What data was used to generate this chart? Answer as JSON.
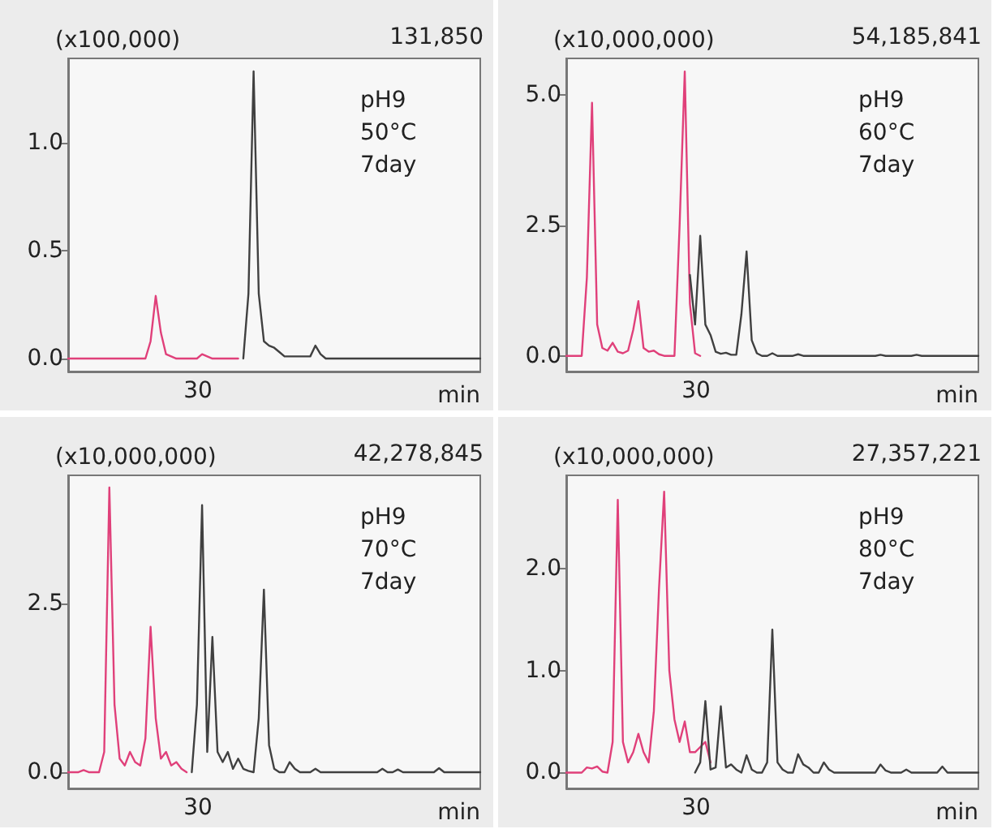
{
  "chart_data": [
    {
      "type": "line",
      "ylabel": "(x100,000)",
      "xlabel": "min",
      "annotations": [
        "131,850",
        "pH9\n50°C\n7day",
        "30"
      ],
      "categories": [
        null,
        null,
        null,
        null,
        null,
        null,
        null,
        null,
        null,
        null,
        null,
        null,
        null,
        null,
        null,
        null,
        null,
        null,
        null,
        null,
        null,
        null,
        null,
        null,
        null,
        null,
        null,
        null,
        null,
        null,
        null,
        null,
        null,
        null,
        null,
        null,
        null,
        null,
        null,
        null,
        null,
        null,
        null,
        null,
        null,
        null,
        null,
        null,
        null,
        null,
        null,
        null,
        null,
        null,
        null,
        null,
        null,
        null,
        null,
        null,
        null,
        null,
        null,
        null,
        null,
        null,
        null,
        null,
        null,
        null,
        null,
        null,
        null,
        null,
        null,
        null,
        null,
        null,
        null,
        null,
        null
      ],
      "ylim": [
        -0.06,
        1.39
      ],
      "yticks": [
        {
          "value": 0,
          "label": "0.0"
        },
        {
          "value": 0.5,
          "label": "0.5"
        },
        {
          "value": 1,
          "label": "1.0"
        }
      ],
      "grid": false,
      "marker": "none",
      "series": [
        {
          "color": "#e0407a",
          "values": [
            0,
            0,
            0,
            0,
            0,
            0,
            0,
            0,
            0,
            0,
            0,
            0,
            0,
            0,
            0,
            0,
            0.08,
            0.29,
            0.12,
            0.02,
            0.01,
            0,
            0,
            0,
            0,
            0,
            0.02,
            0.01,
            0,
            0,
            0,
            0,
            0,
            0,
            null,
            null,
            null,
            null,
            null,
            null,
            null,
            null,
            null,
            null,
            null,
            null,
            null,
            null,
            null,
            null,
            null,
            null,
            null,
            null,
            null,
            null,
            null,
            null,
            null,
            null,
            null,
            null,
            null,
            null,
            null,
            null,
            null,
            null,
            null,
            null,
            null,
            null,
            null,
            null,
            null,
            null,
            null,
            null,
            null,
            null,
            null
          ]
        },
        {
          "color": "#404040",
          "values": [
            null,
            null,
            null,
            null,
            null,
            null,
            null,
            null,
            null,
            null,
            null,
            null,
            null,
            null,
            null,
            null,
            null,
            null,
            null,
            null,
            null,
            null,
            null,
            null,
            null,
            null,
            null,
            null,
            null,
            null,
            null,
            null,
            null,
            null,
            0,
            0.3,
            1.33,
            0.3,
            0.08,
            0.06,
            0.05,
            0.03,
            0.01,
            0.01,
            0.01,
            0.01,
            0.01,
            0.01,
            0.06,
            0.02,
            0,
            0,
            0,
            0,
            0,
            0,
            0,
            0,
            0,
            0,
            0,
            0,
            0,
            0,
            0,
            0,
            0,
            0,
            0,
            0,
            0,
            0,
            0,
            0,
            0,
            0,
            0,
            0,
            0,
            0,
            0
          ]
        }
      ]
    },
    {
      "type": "line",
      "ylabel": "(x10,000,000)",
      "xlabel": "min",
      "annotations": [
        "54,185,841",
        "pH9\n60°C\n7day",
        "30"
      ],
      "categories": [
        null,
        null,
        null,
        null,
        null,
        null,
        null,
        null,
        null,
        null,
        null,
        null,
        null,
        null,
        null,
        null,
        null,
        null,
        null,
        null,
        null,
        null,
        null,
        null,
        null,
        null,
        null,
        null,
        null,
        null,
        null,
        null,
        null,
        null,
        null,
        null,
        null,
        null,
        null,
        null,
        null,
        null,
        null,
        null,
        null,
        null,
        null,
        null,
        null,
        null,
        null,
        null,
        null,
        null,
        null,
        null,
        null,
        null,
        null,
        null,
        null,
        null,
        null,
        null,
        null,
        null,
        null,
        null,
        null,
        null,
        null,
        null,
        null,
        null,
        null,
        null,
        null,
        null,
        null,
        null,
        null
      ],
      "ylim": [
        -0.3,
        5.7
      ],
      "yticks": [
        {
          "value": 0,
          "label": "0.0"
        },
        {
          "value": 2.5,
          "label": "2.5"
        },
        {
          "value": 5,
          "label": "5.0"
        }
      ],
      "grid": false,
      "marker": "none",
      "series": [
        {
          "color": "#e0407a",
          "values": [
            0,
            0,
            0,
            0,
            1.5,
            4.85,
            0.6,
            0.15,
            0.1,
            0.25,
            0.08,
            0.05,
            0.1,
            0.5,
            1.05,
            0.15,
            0.08,
            0.1,
            0.03,
            0,
            0,
            0,
            2.5,
            5.45,
            1,
            0.05,
            0,
            null,
            null,
            null,
            null,
            null,
            null,
            null,
            null,
            null,
            null,
            null,
            null,
            null,
            null,
            null,
            null,
            null,
            null,
            null,
            null,
            null,
            null,
            null,
            null,
            null,
            null,
            null,
            null,
            null,
            null,
            null,
            null,
            null,
            null,
            null,
            null,
            null,
            null,
            null,
            null,
            null,
            null,
            null,
            null,
            null,
            null,
            null,
            null,
            null,
            null,
            null,
            null,
            null,
            null
          ]
        },
        {
          "color": "#404040",
          "values": [
            null,
            null,
            null,
            null,
            null,
            null,
            null,
            null,
            null,
            null,
            null,
            null,
            null,
            null,
            null,
            null,
            null,
            null,
            null,
            null,
            null,
            null,
            null,
            null,
            1.55,
            0.6,
            2.3,
            0.6,
            0.4,
            0.08,
            0.04,
            0.06,
            0.02,
            0.02,
            0.8,
            2,
            0.3,
            0.05,
            0,
            0,
            0.05,
            0,
            0,
            0,
            0,
            0.03,
            0,
            0,
            0,
            0,
            0,
            0,
            0,
            0,
            0,
            0,
            0,
            0,
            0,
            0,
            0,
            0.02,
            0,
            0,
            0,
            0,
            0,
            0,
            0.02,
            0,
            0,
            0,
            0,
            0,
            0,
            0,
            0,
            0,
            0,
            0,
            0
          ]
        }
      ]
    },
    {
      "type": "line",
      "ylabel": "(x10,000,000)",
      "xlabel": "min",
      "annotations": [
        "42,278,845",
        "pH9\n70°C\n7day",
        "30"
      ],
      "categories": [
        null,
        null,
        null,
        null,
        null,
        null,
        null,
        null,
        null,
        null,
        null,
        null,
        null,
        null,
        null,
        null,
        null,
        null,
        null,
        null,
        null,
        null,
        null,
        null,
        null,
        null,
        null,
        null,
        null,
        null,
        null,
        null,
        null,
        null,
        null,
        null,
        null,
        null,
        null,
        null,
        null,
        null,
        null,
        null,
        null,
        null,
        null,
        null,
        null,
        null,
        null,
        null,
        null,
        null,
        null,
        null,
        null,
        null,
        null,
        null,
        null,
        null,
        null,
        null,
        null,
        null,
        null,
        null,
        null,
        null,
        null,
        null,
        null,
        null,
        null,
        null,
        null,
        null,
        null,
        null,
        null
      ],
      "ylim": [
        -0.24,
        4.39
      ],
      "yticks": [
        {
          "value": 0,
          "label": "0.0"
        },
        {
          "value": 2.5,
          "label": "2.5"
        }
      ],
      "grid": false,
      "marker": "none",
      "series": [
        {
          "color": "#e0407a",
          "values": [
            0,
            0,
            0,
            0.03,
            0,
            0,
            0,
            0.3,
            4.21,
            1,
            0.2,
            0.1,
            0.3,
            0.15,
            0.1,
            0.5,
            2.15,
            0.8,
            0.2,
            0.3,
            0.1,
            0.15,
            0.05,
            0,
            null,
            null,
            null,
            null,
            null,
            null,
            null,
            null,
            null,
            null,
            null,
            null,
            null,
            null,
            null,
            null,
            null,
            null,
            null,
            null,
            null,
            null,
            null,
            null,
            null,
            null,
            null,
            null,
            null,
            null,
            null,
            null,
            null,
            null,
            null,
            null,
            null,
            null,
            null,
            null,
            null,
            null,
            null,
            null,
            null,
            null,
            null,
            null,
            null,
            null,
            null,
            null,
            null,
            null,
            null,
            null,
            null
          ]
        },
        {
          "color": "#404040",
          "values": [
            null,
            null,
            null,
            null,
            null,
            null,
            null,
            null,
            null,
            null,
            null,
            null,
            null,
            null,
            null,
            null,
            null,
            null,
            null,
            null,
            null,
            null,
            null,
            null,
            0,
            1,
            3.95,
            0.3,
            2,
            0.3,
            0.15,
            0.3,
            0.05,
            0.2,
            0.05,
            0.02,
            0,
            0.8,
            2.7,
            0.4,
            0.05,
            0,
            0,
            0.15,
            0.05,
            0,
            0,
            0,
            0.05,
            0,
            0,
            0,
            0,
            0,
            0,
            0,
            0,
            0,
            0,
            0,
            0,
            0.05,
            0,
            0,
            0.04,
            0,
            0,
            0,
            0,
            0,
            0,
            0,
            0.06,
            0,
            0,
            0,
            0,
            0,
            0,
            0,
            0
          ]
        }
      ]
    },
    {
      "type": "line",
      "ylabel": "(x10,000,000)",
      "xlabel": "min",
      "annotations": [
        "27,357,221",
        "pH9\n80°C\n7day",
        "30"
      ],
      "categories": [
        null,
        null,
        null,
        null,
        null,
        null,
        null,
        null,
        null,
        null,
        null,
        null,
        null,
        null,
        null,
        null,
        null,
        null,
        null,
        null,
        null,
        null,
        null,
        null,
        null,
        null,
        null,
        null,
        null,
        null,
        null,
        null,
        null,
        null,
        null,
        null,
        null,
        null,
        null,
        null,
        null,
        null,
        null,
        null,
        null,
        null,
        null,
        null,
        null,
        null,
        null,
        null,
        null,
        null,
        null,
        null,
        null,
        null,
        null,
        null,
        null,
        null,
        null,
        null,
        null,
        null,
        null,
        null,
        null,
        null,
        null,
        null,
        null,
        null,
        null,
        null,
        null,
        null,
        null,
        null,
        null
      ],
      "ylim": [
        -0.155,
        2.91
      ],
      "yticks": [
        {
          "value": 0,
          "label": "0.0"
        },
        {
          "value": 1,
          "label": "1.0"
        },
        {
          "value": 2,
          "label": "2.0"
        }
      ],
      "grid": false,
      "marker": "none",
      "series": [
        {
          "color": "#e0407a",
          "values": [
            0,
            0,
            0,
            0,
            0.05,
            0.04,
            0.06,
            0.01,
            0,
            0.3,
            2.67,
            0.3,
            0.1,
            0.2,
            0.38,
            0.2,
            0.1,
            0.6,
            1.8,
            2.75,
            1,
            0.52,
            0.3,
            0.5,
            0.2,
            0.2,
            0.25,
            0.3,
            0.1,
            null,
            null,
            null,
            null,
            null,
            null,
            null,
            null,
            null,
            null,
            null,
            null,
            null,
            null,
            null,
            null,
            null,
            null,
            null,
            null,
            null,
            null,
            null,
            null,
            null,
            null,
            null,
            null,
            null,
            null,
            null,
            null,
            null,
            null,
            null,
            null,
            null,
            null,
            null,
            null,
            null,
            null,
            null,
            null,
            null,
            null,
            null,
            null,
            null,
            null,
            null,
            null
          ]
        },
        {
          "color": "#404040",
          "values": [
            null,
            null,
            null,
            null,
            null,
            null,
            null,
            null,
            null,
            null,
            null,
            null,
            null,
            null,
            null,
            null,
            null,
            null,
            null,
            null,
            null,
            null,
            null,
            null,
            null,
            0,
            0.1,
            0.7,
            0.03,
            0.05,
            0.65,
            0.05,
            0.08,
            0.03,
            0,
            0.17,
            0.03,
            0,
            0,
            0.1,
            1.4,
            0.1,
            0.03,
            0,
            0,
            0.18,
            0.08,
            0.05,
            0,
            0,
            0.1,
            0.03,
            0,
            0,
            0,
            0,
            0,
            0,
            0,
            0,
            0,
            0.08,
            0.02,
            0,
            0,
            0,
            0.03,
            0,
            0,
            0,
            0,
            0,
            0,
            0.06,
            0,
            0,
            0,
            0,
            0,
            0,
            0
          ]
        }
      ]
    }
  ]
}
